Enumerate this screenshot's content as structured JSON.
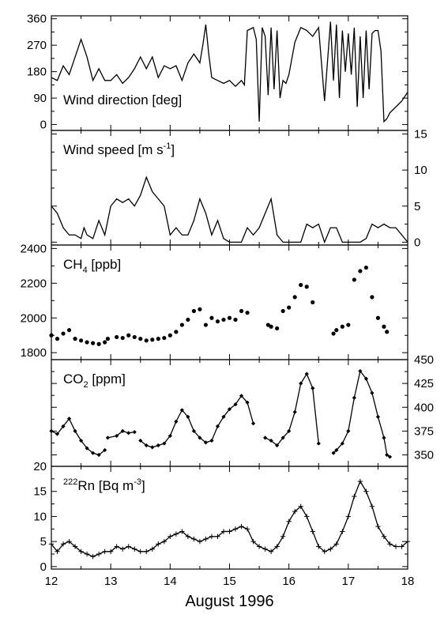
{
  "chart_data": [
    {
      "type": "line",
      "panel_label": "Wind direction [deg]",
      "ylim": [
        -20,
        370
      ],
      "yticks": [
        "0",
        "90",
        "180",
        "270",
        "360"
      ],
      "ytick_values": [
        0,
        90,
        180,
        270,
        360
      ],
      "yaxis_side": "left",
      "markers": "none",
      "series": [
        {
          "x": [
            12.0,
            12.1,
            12.2,
            12.3,
            12.4,
            12.5,
            12.6,
            12.7,
            12.8,
            12.9,
            13.0,
            13.1,
            13.2,
            13.3,
            13.4,
            13.5,
            13.6,
            13.7,
            13.8,
            13.9,
            14.0,
            14.1,
            14.2,
            14.3,
            14.4,
            14.5,
            14.55,
            14.6,
            14.65,
            14.7,
            14.8,
            14.9,
            15.0,
            15.1,
            15.2,
            15.25,
            15.3,
            15.4,
            15.45,
            15.5,
            15.55,
            15.6,
            15.65,
            15.7,
            15.75,
            15.8,
            15.85,
            15.9,
            15.95,
            16.0,
            16.1,
            16.2,
            16.3,
            16.4,
            16.5,
            16.6,
            16.7,
            16.75,
            16.8,
            16.85,
            16.9,
            16.95,
            17.0,
            17.05,
            17.1,
            17.15,
            17.2,
            17.25,
            17.3,
            17.35,
            17.4,
            17.45,
            17.5,
            17.55,
            17.6,
            17.65,
            17.7,
            17.8,
            17.9,
            18.0
          ],
          "y": [
            160,
            150,
            200,
            170,
            230,
            290,
            230,
            150,
            190,
            150,
            150,
            170,
            140,
            160,
            190,
            230,
            190,
            230,
            160,
            200,
            190,
            200,
            150,
            210,
            240,
            210,
            270,
            340,
            240,
            160,
            150,
            140,
            150,
            130,
            150,
            135,
            320,
            330,
            290,
            10,
            330,
            300,
            100,
            330,
            120,
            320,
            90,
            150,
            140,
            170,
            280,
            330,
            320,
            300,
            330,
            80,
            350,
            150,
            340,
            90,
            320,
            180,
            310,
            170,
            330,
            60,
            300,
            90,
            320,
            120,
            310,
            320,
            320,
            250,
            10,
            20,
            40,
            60,
            80,
            110
          ]
        }
      ]
    },
    {
      "type": "line",
      "panel_label": "Wind speed [m s-1]",
      "ylim": [
        -0.4,
        15.5
      ],
      "yticks": [
        "0",
        "5",
        "10",
        "15"
      ],
      "ytick_values": [
        0,
        5,
        10,
        15
      ],
      "yaxis_side": "right",
      "markers": "none",
      "series": [
        {
          "x": [
            12.0,
            12.1,
            12.2,
            12.3,
            12.4,
            12.5,
            12.55,
            12.6,
            12.7,
            12.8,
            12.9,
            13.0,
            13.1,
            13.2,
            13.3,
            13.4,
            13.5,
            13.6,
            13.7,
            13.8,
            13.9,
            14.0,
            14.1,
            14.2,
            14.3,
            14.4,
            14.5,
            14.6,
            14.7,
            14.8,
            14.9,
            15.0,
            15.1,
            15.2,
            15.3,
            15.4,
            15.5,
            15.6,
            15.7,
            15.8,
            15.9,
            16.0,
            16.1,
            16.2,
            16.3,
            16.4,
            16.5,
            16.6,
            16.7,
            16.8,
            16.9,
            17.0,
            17.1,
            17.2,
            17.3,
            17.4,
            17.5,
            17.6,
            17.7,
            17.8,
            18.0
          ],
          "y": [
            5,
            4,
            2,
            1,
            1,
            0.5,
            2,
            1,
            0.5,
            3,
            1,
            5,
            6,
            5.5,
            6,
            5,
            6.5,
            9,
            7,
            6,
            5,
            1,
            2,
            1,
            1,
            3,
            6,
            4,
            1,
            3,
            0.5,
            0,
            0,
            0,
            2,
            1,
            2,
            4,
            6,
            1,
            0,
            0,
            0,
            0,
            2.5,
            2,
            2.5,
            0,
            2,
            2,
            0,
            0,
            0,
            0,
            0.5,
            2.5,
            2,
            2.5,
            2,
            2,
            0
          ]
        }
      ]
    },
    {
      "type": "scatter",
      "panel_label": "CH4 [ppb]",
      "ylim": [
        1760,
        2420
      ],
      "yticks": [
        "1800",
        "2000",
        "2200",
        "2400"
      ],
      "ytick_values": [
        1800,
        2000,
        2200,
        2400
      ],
      "yaxis_side": "left",
      "markers": "dot",
      "series": [
        {
          "x": [
            12.0,
            12.1,
            12.2,
            12.3,
            12.4,
            12.5,
            12.6,
            12.7,
            12.8,
            12.9
          ],
          "y": [
            1900,
            1880,
            1910,
            1930,
            1880,
            1870,
            1860,
            1855,
            1850,
            1860
          ]
        },
        {
          "x": [
            12.95,
            13.1,
            13.2,
            13.3,
            13.4
          ],
          "y": [
            1880,
            1890,
            1885,
            1900,
            1890
          ]
        },
        {
          "x": [
            13.5,
            13.6,
            13.7,
            13.8,
            13.9,
            14.0,
            14.1,
            14.2,
            14.3,
            14.4,
            14.5,
            14.6,
            14.7,
            14.8,
            14.9,
            15.0,
            15.1,
            15.2,
            15.3
          ],
          "y": [
            1880,
            1870,
            1875,
            1880,
            1885,
            1900,
            1920,
            1960,
            1990,
            2040,
            2050,
            1960,
            2000,
            1980,
            1990,
            2000,
            1990,
            2040,
            2030
          ]
        },
        {
          "x": [
            15.65,
            15.7,
            15.8,
            15.9,
            16.0,
            16.1,
            16.2,
            16.3,
            16.4
          ],
          "y": [
            1960,
            1950,
            1940,
            2040,
            2060,
            2120,
            2190,
            2180,
            2090
          ]
        },
        {
          "x": [
            16.75,
            16.8,
            16.9,
            17.0,
            17.1,
            17.2,
            17.3,
            17.4,
            17.5,
            17.6,
            17.65
          ],
          "y": [
            1910,
            1930,
            1950,
            1960,
            2220,
            2270,
            2290,
            2120,
            2000,
            1950,
            1920
          ]
        }
      ]
    },
    {
      "type": "line",
      "panel_label": "CO2 [ppm]",
      "ylim": [
        338,
        450
      ],
      "yticks": [
        "350",
        "375",
        "400",
        "425",
        "450"
      ],
      "ytick_values": [
        350,
        375,
        400,
        425,
        450
      ],
      "yaxis_side": "right",
      "markers": "diamond",
      "series": [
        {
          "x": [
            12.0,
            12.1,
            12.2,
            12.3,
            12.4,
            12.5,
            12.6,
            12.7,
            12.8,
            12.9
          ],
          "y": [
            375,
            372,
            380,
            388,
            375,
            365,
            357,
            352,
            350,
            355
          ]
        },
        {
          "x": [
            12.95,
            13.1,
            13.2,
            13.3,
            13.4
          ],
          "y": [
            368,
            370,
            375,
            373,
            374
          ]
        },
        {
          "x": [
            13.5,
            13.6,
            13.7,
            13.8,
            13.9,
            14.0,
            14.1,
            14.2,
            14.3,
            14.4,
            14.5,
            14.6,
            14.7,
            14.8,
            14.9,
            15.0,
            15.1,
            15.2,
            15.3,
            15.4
          ],
          "y": [
            365,
            360,
            358,
            360,
            362,
            370,
            385,
            397,
            390,
            375,
            368,
            363,
            365,
            380,
            390,
            398,
            403,
            412,
            405,
            383
          ]
        },
        {
          "x": [
            15.6,
            15.7,
            15.8,
            15.9,
            16.0,
            16.1,
            16.2,
            16.3,
            16.4,
            16.5
          ],
          "y": [
            368,
            365,
            360,
            368,
            375,
            395,
            425,
            435,
            420,
            362
          ]
        },
        {
          "x": [
            16.75,
            16.8,
            16.9,
            17.0,
            17.1,
            17.2,
            17.3,
            17.4,
            17.5,
            17.6,
            17.65,
            17.7
          ],
          "y": [
            352,
            355,
            362,
            375,
            410,
            438,
            430,
            415,
            390,
            368,
            350,
            348
          ]
        }
      ]
    },
    {
      "type": "line",
      "panel_label": "222Rn [Bq m-3]",
      "ylim": [
        -0.5,
        20
      ],
      "yticks": [
        "0",
        "5",
        "10",
        "15",
        "20"
      ],
      "ytick_values": [
        0,
        5,
        10,
        15,
        20
      ],
      "yaxis_side": "left",
      "markers": "plus",
      "series": [
        {
          "x": [
            12.0,
            12.1,
            12.2,
            12.3,
            12.4,
            12.5,
            12.6,
            12.7,
            12.8,
            12.9,
            13.0,
            13.1,
            13.2,
            13.3,
            13.4,
            13.5,
            13.6,
            13.7,
            13.8,
            13.9,
            14.0,
            14.1,
            14.2,
            14.3,
            14.4,
            14.5,
            14.6,
            14.7,
            14.8,
            14.9,
            15.0,
            15.1,
            15.2,
            15.3,
            15.4,
            15.5,
            15.6,
            15.7,
            15.8,
            15.9,
            16.0,
            16.1,
            16.2,
            16.3,
            16.4,
            16.5,
            16.6,
            16.7,
            16.8,
            16.9,
            17.0,
            17.1,
            17.2,
            17.3,
            17.4,
            17.5,
            17.6,
            17.7,
            17.8,
            17.9,
            18.0
          ],
          "y": [
            4.5,
            3,
            4.5,
            5,
            4,
            3,
            2.5,
            2,
            2.5,
            3,
            3,
            4,
            3.5,
            4,
            3.5,
            3,
            3,
            3.5,
            4.5,
            5,
            6,
            6.5,
            7,
            6,
            5.5,
            5,
            5.5,
            6,
            6,
            7,
            7,
            7.5,
            8,
            7.5,
            5,
            4,
            3.5,
            3,
            4,
            6,
            9,
            11,
            12,
            10,
            7,
            4,
            3,
            3.5,
            4.5,
            7,
            10,
            14,
            17,
            15,
            12,
            8,
            6,
            4.5,
            4,
            4,
            5
          ]
        }
      ]
    }
  ],
  "x_axis": {
    "xlim": [
      12,
      18
    ],
    "ticks": [
      "12",
      "13",
      "14",
      "15",
      "16",
      "17",
      "18"
    ],
    "tick_values": [
      12,
      13,
      14,
      15,
      16,
      17,
      18
    ],
    "label": "August 1996"
  }
}
